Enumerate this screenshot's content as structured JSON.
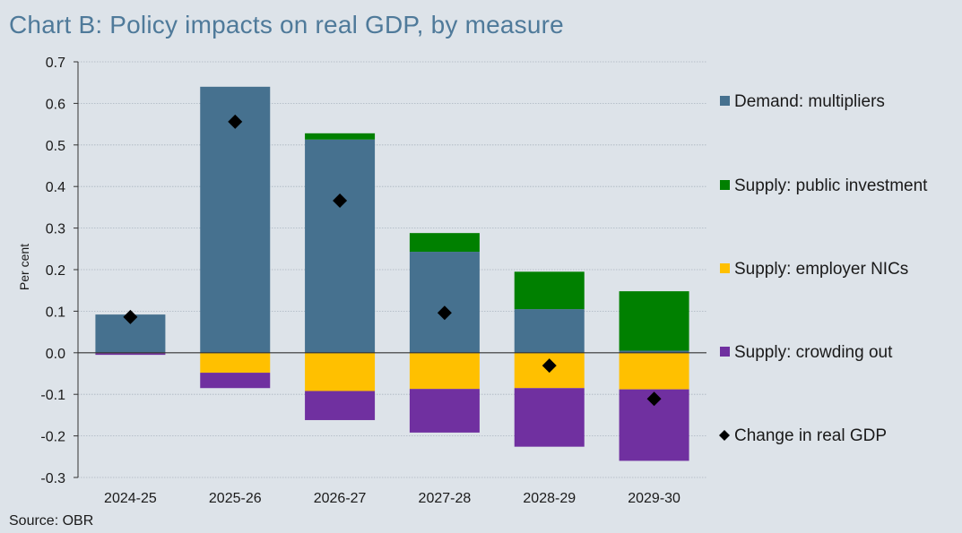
{
  "title": "Chart B: Policy impacts on real GDP, by measure",
  "source": "Source: OBR",
  "chart_data": {
    "type": "bar",
    "stacked": true,
    "title": "Chart B: Policy impacts on real GDP, by measure",
    "xlabel": "",
    "ylabel": "Per cent",
    "ylim": [
      -0.3,
      0.7
    ],
    "yticks": [
      "0.7",
      "0.6",
      "0.5",
      "0.4",
      "0.3",
      "0.2",
      "0.1",
      "0.0",
      "-0.1",
      "-0.2",
      "-0.3"
    ],
    "ytick_values": [
      0.7,
      0.6,
      0.5,
      0.4,
      0.3,
      0.2,
      0.1,
      0.0,
      -0.1,
      -0.2,
      -0.3
    ],
    "grid": true,
    "legend_position": "right",
    "categories": [
      "2024-25",
      "2025-26",
      "2026-27",
      "2027-28",
      "2028-29",
      "2029-30"
    ],
    "series": [
      {
        "name": "Demand: multipliers",
        "color": "#46718f",
        "values": [
          0.092,
          0.64,
          0.513,
          0.243,
          0.105,
          0.005
        ]
      },
      {
        "name": "Supply: public investment",
        "color": "#008000",
        "values": [
          0.0,
          0.0,
          0.015,
          0.045,
          0.09,
          0.143
        ]
      },
      {
        "name": "Supply: employer NICs",
        "color": "#ffc000",
        "values": [
          -0.001,
          -0.048,
          -0.092,
          -0.087,
          -0.085,
          -0.088
        ]
      },
      {
        "name": "Supply: crowding out",
        "color": "#7030a0",
        "values": [
          -0.004,
          -0.037,
          -0.07,
          -0.105,
          -0.141,
          -0.172
        ]
      }
    ],
    "line_series": {
      "name": "Change in real GDP",
      "marker": "diamond",
      "color": "#000000",
      "values": [
        0.086,
        0.556,
        0.366,
        0.096,
        -0.031,
        -0.111
      ]
    }
  }
}
